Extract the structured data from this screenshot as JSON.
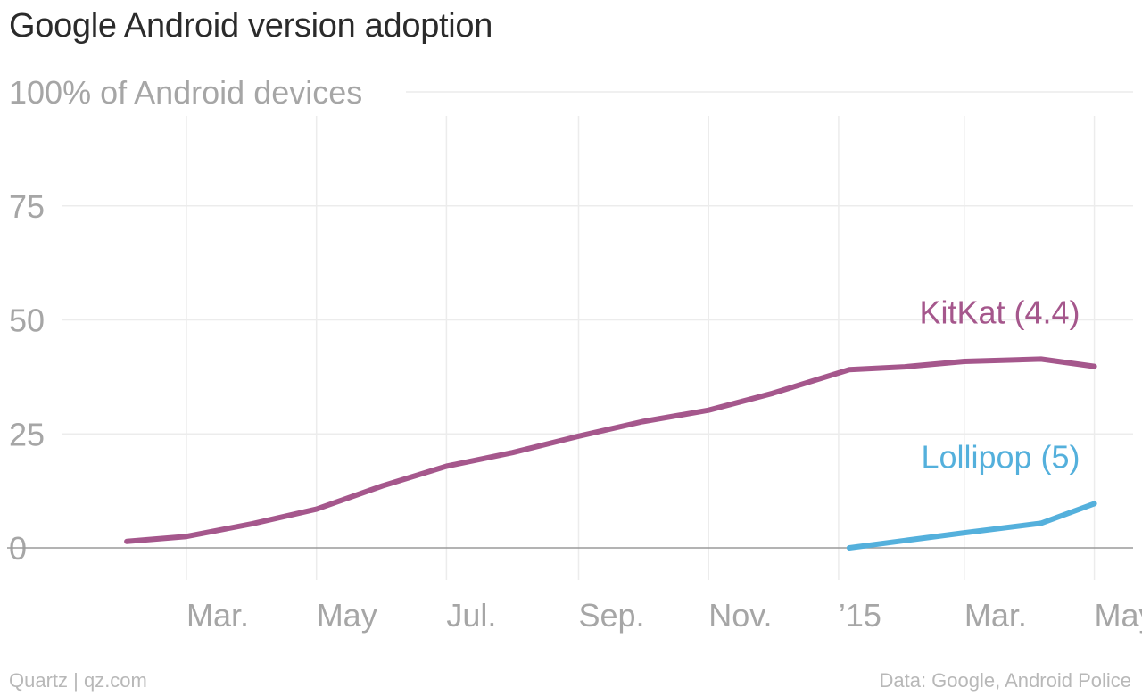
{
  "header": {
    "title": "Google Android version adoption"
  },
  "footer": {
    "source_left": "Quartz | qz.com",
    "source_right": "Data: Google, Android Police"
  },
  "chart_data": {
    "type": "line",
    "title": "Google Android version adoption",
    "ylabel": "100% of Android devices",
    "ylim": [
      0,
      100
    ],
    "yticks": [
      0,
      25,
      50,
      75,
      100
    ],
    "ytick_labels": [
      "0",
      "25",
      "50",
      "75",
      "100% of Android devices"
    ],
    "xlim": [
      "2014-01-06",
      "2015-05-15"
    ],
    "xticks": [
      {
        "date": "2014-03-01",
        "label": "Mar."
      },
      {
        "date": "2014-05-01",
        "label": "May"
      },
      {
        "date": "2014-07-01",
        "label": "Jul."
      },
      {
        "date": "2014-09-01",
        "label": "Sep."
      },
      {
        "date": "2014-11-01",
        "label": "Nov."
      },
      {
        "date": "2015-01-01",
        "label": "’15"
      },
      {
        "date": "2015-03-01",
        "label": "Mar."
      },
      {
        "date": "2015-05-01",
        "label": "May"
      }
    ],
    "grid": true,
    "legend": "inline-labels",
    "series": [
      {
        "name": "KitKat (4.4)",
        "color": "#a5578c",
        "points": [
          {
            "x": "2014-02-01",
            "y": 1.4
          },
          {
            "x": "2014-03-01",
            "y": 2.5
          },
          {
            "x": "2014-04-01",
            "y": 5.3
          },
          {
            "x": "2014-05-01",
            "y": 8.5
          },
          {
            "x": "2014-06-01",
            "y": 13.6
          },
          {
            "x": "2014-07-01",
            "y": 17.9
          },
          {
            "x": "2014-08-01",
            "y": 20.9
          },
          {
            "x": "2014-09-01",
            "y": 24.5
          },
          {
            "x": "2014-10-01",
            "y": 27.7
          },
          {
            "x": "2014-11-01",
            "y": 30.2
          },
          {
            "x": "2014-12-01",
            "y": 33.9
          },
          {
            "x": "2015-01-06",
            "y": 39.1
          },
          {
            "x": "2015-02-01",
            "y": 39.7
          },
          {
            "x": "2015-03-01",
            "y": 40.9
          },
          {
            "x": "2015-04-06",
            "y": 41.4
          },
          {
            "x": "2015-05-01",
            "y": 39.8
          }
        ]
      },
      {
        "name": "Lollipop (5)",
        "color": "#54b0dc",
        "points": [
          {
            "x": "2015-01-06",
            "y": 0
          },
          {
            "x": "2015-02-01",
            "y": 1.6
          },
          {
            "x": "2015-03-01",
            "y": 3.3
          },
          {
            "x": "2015-04-06",
            "y": 5.4
          },
          {
            "x": "2015-05-01",
            "y": 9.7
          }
        ]
      }
    ]
  }
}
